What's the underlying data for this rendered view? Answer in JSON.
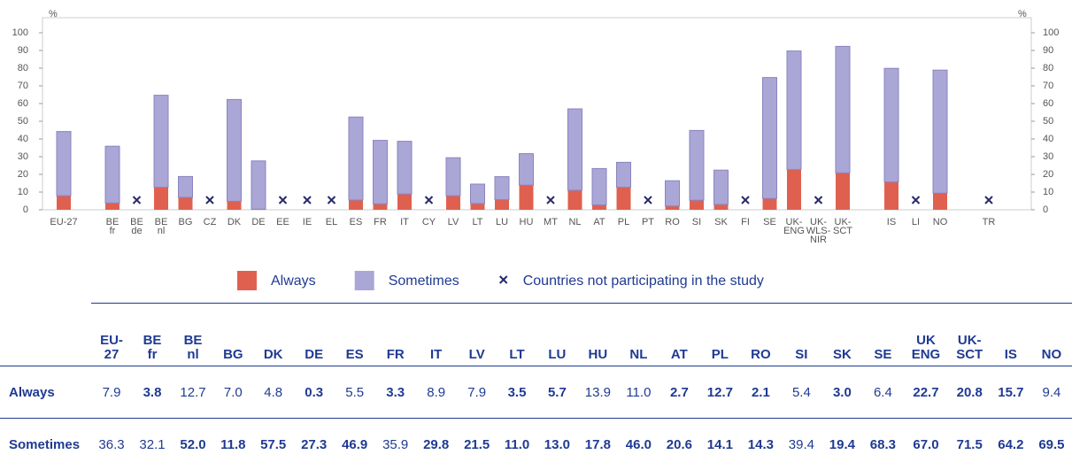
{
  "chart_data": {
    "type": "bar",
    "stacked": true,
    "unit_left": "%",
    "unit_right": "%",
    "categories": [
      "EU-27",
      null,
      "BE\nfr",
      "BE\nde",
      "BE\nnl",
      "BG",
      "CZ",
      "DK",
      "DE",
      "EE",
      "IE",
      "EL",
      "ES",
      "FR",
      "IT",
      "CY",
      "LV",
      "LT",
      "LU",
      "HU",
      "MT",
      "NL",
      "AT",
      "PL",
      "PT",
      "RO",
      "SI",
      "SK",
      "FI",
      "SE",
      "UK-\nENG",
      "UK-\nWLS-\nNIR",
      "UK-\nSCT",
      null,
      "IS",
      "LI",
      "NO",
      null,
      "TR"
    ],
    "series": [
      {
        "name": "Always",
        "color": "#e0604f",
        "values": [
          7.9,
          null,
          3.8,
          null,
          12.7,
          7.0,
          null,
          4.8,
          0.3,
          null,
          null,
          null,
          5.5,
          3.3,
          8.9,
          null,
          7.9,
          3.5,
          5.7,
          13.9,
          null,
          11.0,
          2.7,
          12.7,
          null,
          2.1,
          5.4,
          3.0,
          null,
          6.4,
          22.7,
          null,
          20.8,
          null,
          15.7,
          null,
          9.4,
          null,
          null
        ]
      },
      {
        "name": "Sometimes",
        "color": "#aaa6d6",
        "values": [
          36.3,
          null,
          32.1,
          null,
          52.0,
          11.8,
          null,
          57.5,
          27.3,
          null,
          null,
          null,
          46.9,
          35.9,
          29.8,
          null,
          21.5,
          11.0,
          13.0,
          17.8,
          null,
          46.0,
          20.6,
          14.1,
          null,
          14.3,
          39.4,
          19.4,
          null,
          68.3,
          67.0,
          null,
          71.5,
          null,
          64.2,
          null,
          69.5,
          null,
          null
        ]
      }
    ],
    "not_participating_label": "Countries not participating in the study",
    "ylim": [
      0,
      100
    ],
    "yticks": [
      0,
      10,
      20,
      30,
      40,
      50,
      60,
      70,
      80,
      90,
      100
    ],
    "y2lim": [
      0,
      100
    ],
    "y2ticks": [
      0,
      10,
      20,
      30,
      40,
      50,
      60,
      70,
      80,
      90,
      100
    ]
  },
  "table": {
    "header": [
      "EU-\n27",
      "BE\nfr",
      "BE\nnl",
      "BG",
      "DK",
      "DE",
      "ES",
      "FR",
      "IT",
      "LV",
      "LT",
      "LU",
      "HU",
      "NL",
      "AT",
      "PL",
      "RO",
      "SI",
      "SK",
      "SE",
      "UK\nENG",
      "UK-\nSCT",
      "IS",
      "NO"
    ],
    "rows": [
      {
        "label": "Always",
        "cells": [
          "7.9",
          "3.8",
          "12.7",
          "7.0",
          "4.8",
          "0.3",
          "5.5",
          "3.3",
          "8.9",
          "7.9",
          "3.5",
          "5.7",
          "13.9",
          "11.0",
          "2.7",
          "12.7",
          "2.1",
          "5.4",
          "3.0",
          "6.4",
          "22.7",
          "20.8",
          "15.7",
          "9.4"
        ],
        "bold": [
          false,
          true,
          false,
          false,
          false,
          true,
          false,
          true,
          false,
          false,
          true,
          true,
          false,
          false,
          true,
          true,
          true,
          false,
          true,
          false,
          true,
          true,
          true,
          false
        ]
      },
      {
        "label": "Sometimes",
        "cells": [
          "36.3",
          "32.1",
          "52.0",
          "11.8",
          "57.5",
          "27.3",
          "46.9",
          "35.9",
          "29.8",
          "21.5",
          "11.0",
          "13.0",
          "17.8",
          "46.0",
          "20.6",
          "14.1",
          "14.3",
          "39.4",
          "19.4",
          "68.3",
          "67.0",
          "71.5",
          "64.2",
          "69.5"
        ],
        "bold": [
          false,
          false,
          true,
          true,
          true,
          true,
          true,
          false,
          true,
          true,
          true,
          true,
          true,
          true,
          true,
          true,
          true,
          false,
          true,
          true,
          true,
          true,
          true,
          true
        ]
      }
    ]
  }
}
